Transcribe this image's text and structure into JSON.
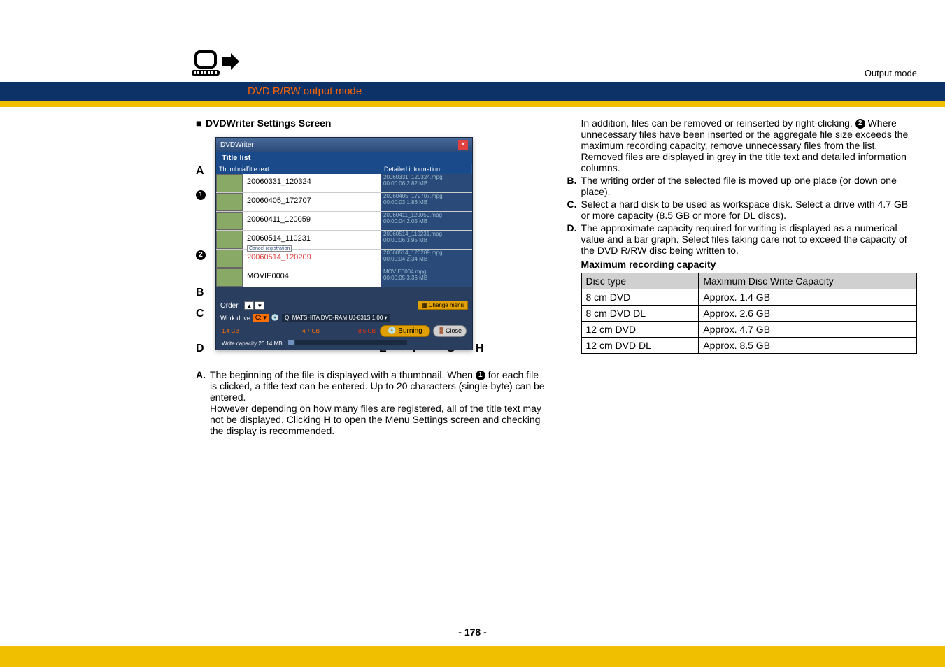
{
  "header": {
    "mode_label": "Output mode",
    "section_title": "DVD R/RW output mode"
  },
  "body": {
    "heading": "DVDWriter Settings Screen",
    "callouts": {
      "A": "A",
      "B": "B",
      "C": "C",
      "D": "D",
      "E": "E",
      "F": "F",
      "G": "G",
      "H": "H",
      "n1": "1",
      "n2": "2"
    },
    "dvdwriter": {
      "title": "DVDWriter",
      "list_header": "Title list",
      "col_thumb": "Thumbnail",
      "col_title": "Title text",
      "col_detail": "Detailed information",
      "rows": [
        {
          "title": "20060331_120324",
          "detail1": "20060331_120324.mpg",
          "detail2": "00:00:06 2.82 MB",
          "grey": false
        },
        {
          "title": "20060405_172707",
          "detail1": "20060405_172707.mpg",
          "detail2": "00:00:03 1.86 MB",
          "grey": false
        },
        {
          "title": "20060411_120059",
          "detail1": "20060411_120059.mpg",
          "detail2": "00:00:04 2.05 MB",
          "grey": false
        },
        {
          "title": "20060514_110231",
          "detail1": "20060514_110231.mpg",
          "detail2": "00:00:06 3.95 MB",
          "grey": false
        },
        {
          "title": "20060514_120209",
          "detail1": "20060514_120209.mpg",
          "detail2": "00:00:04 2.34 MB",
          "grey": true
        },
        {
          "title": "MOVIE0004",
          "detail1": "MOVIE0004.mpg",
          "detail2": "00:00:05 3.36 MB",
          "grey": false
        }
      ],
      "cancel_reg": "Cancel registration",
      "order_label": "Order",
      "change_menu": "Change menu",
      "work_drive": "Work drive",
      "drive_letter": "C:",
      "drive_info": "Q: MATSHITA DVD-RAM UJ-831S 1.00",
      "write_cap": "Write capacity 26.14 MB",
      "burning": "Burning",
      "close": "Close",
      "cap_values": [
        "1.4 GB",
        "4.7 GB",
        "8.5 GB"
      ]
    },
    "descA": {
      "label": "A.",
      "text1": "The beginning of the file is displayed with a thumbnail. When ",
      "text2": " for each file is clicked, a title text can be entered. Up to 20 characters (single-byte) can be entered.",
      "text3": "However depending on how many files are registered, all of the title text may not be displayed. Clicking ",
      "textH": "H",
      "text4": " to open the Menu Settings screen and checking the display is recommended."
    },
    "right_intro": {
      "text1": "In addition, files can be removed or reinserted by right-clicking. ",
      "text2": " Where unnecessary files have been inserted or the aggregate file size exceeds the maximum recording capacity, remove unnecessary files from the list. Removed files are displayed in grey in the title text and detailed information columns."
    },
    "descB": {
      "label": "B.",
      "text": "The writing order of the selected file is moved up one place (or down one place)."
    },
    "descC": {
      "label": "C.",
      "text": "Select a hard disk to be used as workspace disk. Select a drive with 4.7 GB or more capacity (8.5 GB or more for DL discs)."
    },
    "descD": {
      "label": "D.",
      "text": "The approximate capacity required for writing is displayed as a numerical value and a bar graph. Select files taking care not to exceed the capacity of the DVD R/RW disc being written to."
    },
    "cap_heading": "Maximum recording capacity",
    "table": {
      "hdr1": "Disc type",
      "hdr2": "Maximum Disc Write Capacity",
      "rows": [
        {
          "type": "8 cm DVD",
          "cap": "Approx. 1.4 GB"
        },
        {
          "type": "8 cm DVD DL",
          "cap": "Approx. 2.6 GB"
        },
        {
          "type": "12 cm DVD",
          "cap": "Approx. 4.7 GB"
        },
        {
          "type": "12 cm DVD DL",
          "cap": "Approx. 8.5 GB"
        }
      ]
    },
    "page_num": "- 178 -"
  }
}
